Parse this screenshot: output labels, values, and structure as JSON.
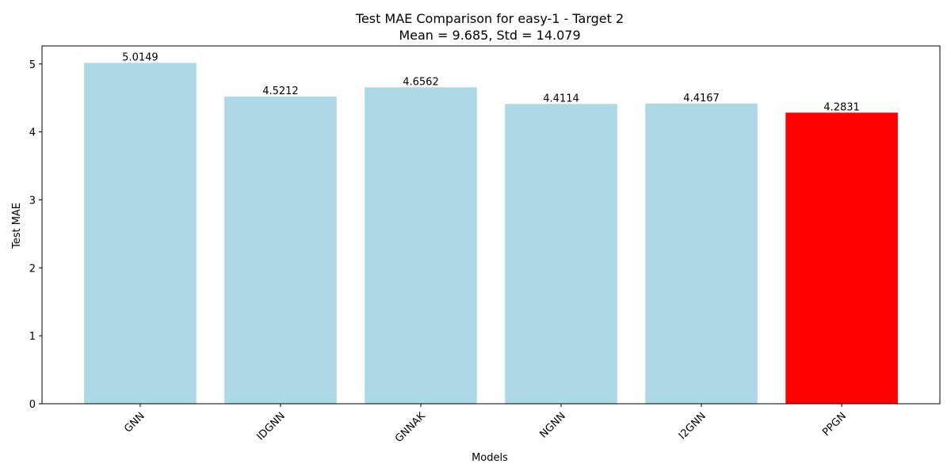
{
  "chart_data": {
    "type": "bar",
    "title": "Test MAE Comparison for easy-1 - Target 2",
    "subtitle": "Mean = 9.685, Std = 14.079",
    "xlabel": "Models",
    "ylabel": "Test MAE",
    "categories": [
      "GNN",
      "IDGNN",
      "GNNAK",
      "NGNN",
      "I2GNN",
      "PPGN"
    ],
    "values": [
      5.0149,
      4.5212,
      4.6562,
      4.4114,
      4.4167,
      4.2831
    ],
    "value_labels": [
      "5.0149",
      "4.5212",
      "4.6562",
      "4.4114",
      "4.4167",
      "4.2831"
    ],
    "ylim": [
      0,
      5.265
    ],
    "yticks": [
      0,
      1,
      2,
      3,
      4,
      5
    ],
    "ytick_labels": [
      "0",
      "1",
      "2",
      "3",
      "4",
      "5"
    ],
    "bar_colors": [
      "#add8e6",
      "#add8e6",
      "#add8e6",
      "#add8e6",
      "#add8e6",
      "#ff0000"
    ],
    "grid": false,
    "legend": false
  }
}
